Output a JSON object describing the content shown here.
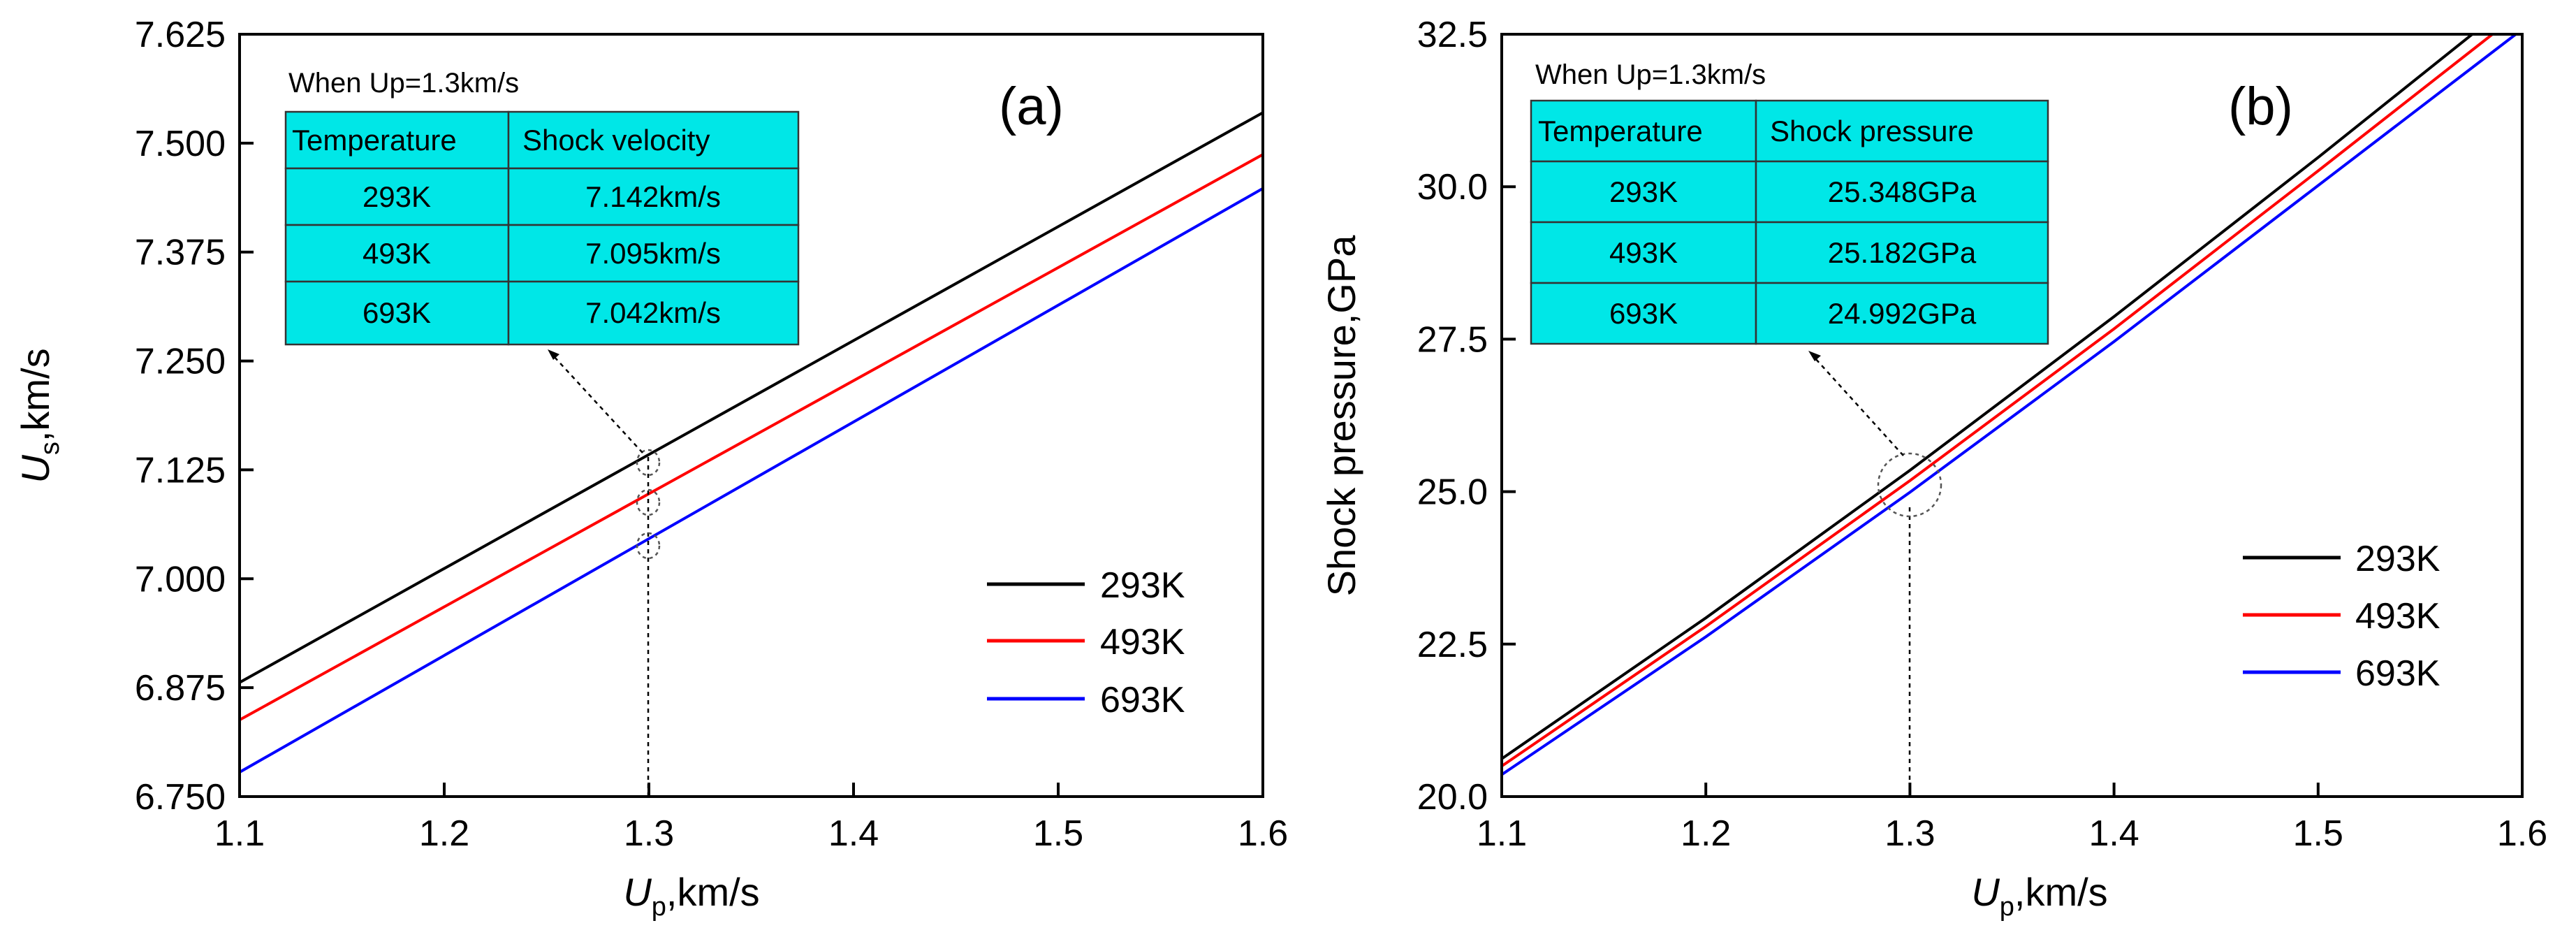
{
  "chart_data": [
    {
      "id": "a",
      "type": "line",
      "panel_label": "(a)",
      "xlabel_main": "U",
      "xlabel_sub": "p",
      "xlabel_rest": ",km/s",
      "ylabel_main": "U",
      "ylabel_sub": "s",
      "ylabel_rest": ",km/s",
      "xlim": [
        1.1,
        1.6
      ],
      "ylim": [
        6.75,
        7.625
      ],
      "xticks": [
        1.1,
        1.2,
        1.3,
        1.4,
        1.5,
        1.6
      ],
      "xtick_labels": [
        "1.1",
        "1.2",
        "1.3",
        "1.4",
        "1.5",
        "1.6"
      ],
      "yticks": [
        6.75,
        6.875,
        7.0,
        7.125,
        7.25,
        7.375,
        7.5,
        7.625
      ],
      "ytick_labels": [
        "6.750",
        "6.875",
        "7.000",
        "7.125",
        "7.250",
        "7.375",
        "7.500",
        "7.625"
      ],
      "legend_position": "bottom-right",
      "highlight_x": 1.3,
      "series": [
        {
          "name": "293K",
          "color": "#000000",
          "x": [
            1.1,
            1.6
          ],
          "y": [
            6.881,
            7.535
          ]
        },
        {
          "name": "493K",
          "color": "#ff0000",
          "x": [
            1.1,
            1.6
          ],
          "y": [
            6.838,
            7.487
          ]
        },
        {
          "name": "693K",
          "color": "#0000ff",
          "x": [
            1.1,
            1.6
          ],
          "y": [
            6.778,
            7.448
          ]
        }
      ],
      "annotation": {
        "title": "When Up=1.3km/s",
        "headers": [
          "Temperature",
          "Shock velocity"
        ],
        "rows": [
          [
            "293K",
            "7.142km/s"
          ],
          [
            "493K",
            "7.095km/s"
          ],
          [
            "693K",
            "7.042km/s"
          ]
        ]
      }
    },
    {
      "id": "b",
      "type": "line",
      "panel_label": "(b)",
      "xlabel_main": "U",
      "xlabel_sub": "p",
      "xlabel_rest": ",km/s",
      "ylabel": "Shock pressure,GPa",
      "xlim": [
        1.1,
        1.6
      ],
      "ylim": [
        20.0,
        32.5
      ],
      "xticks": [
        1.1,
        1.2,
        1.3,
        1.4,
        1.5,
        1.6
      ],
      "xtick_labels": [
        "1.1",
        "1.2",
        "1.3",
        "1.4",
        "1.5",
        "1.6"
      ],
      "yticks": [
        20.0,
        22.5,
        25.0,
        27.5,
        30.0,
        32.5
      ],
      "ytick_labels": [
        "20.0",
        "22.5",
        "25.0",
        "27.5",
        "30.0",
        "32.5"
      ],
      "legend_position": "bottom-right",
      "highlight_x": 1.3,
      "series": [
        {
          "name": "293K",
          "color": "#000000",
          "x": [
            1.1,
            1.2,
            1.3,
            1.4,
            1.5,
            1.58
          ],
          "y": [
            20.62,
            22.93,
            25.35,
            27.87,
            30.48,
            32.62
          ]
        },
        {
          "name": "493K",
          "color": "#ff0000",
          "x": [
            1.1,
            1.2,
            1.3,
            1.4,
            1.5,
            1.59
          ],
          "y": [
            20.5,
            22.79,
            25.18,
            27.67,
            30.26,
            32.62
          ]
        },
        {
          "name": "693K",
          "color": "#0000ff",
          "x": [
            1.1,
            1.2,
            1.3,
            1.4,
            1.5,
            1.6
          ],
          "y": [
            20.36,
            22.62,
            24.99,
            27.46,
            30.02,
            32.58
          ]
        }
      ],
      "annotation": {
        "title": "When Up=1.3km/s",
        "headers": [
          "Temperature",
          "Shock pressure"
        ],
        "rows": [
          [
            "293K",
            "25.348GPa"
          ],
          [
            "493K",
            "25.182GPa"
          ],
          [
            "693K",
            "24.992GPa"
          ]
        ]
      }
    }
  ]
}
